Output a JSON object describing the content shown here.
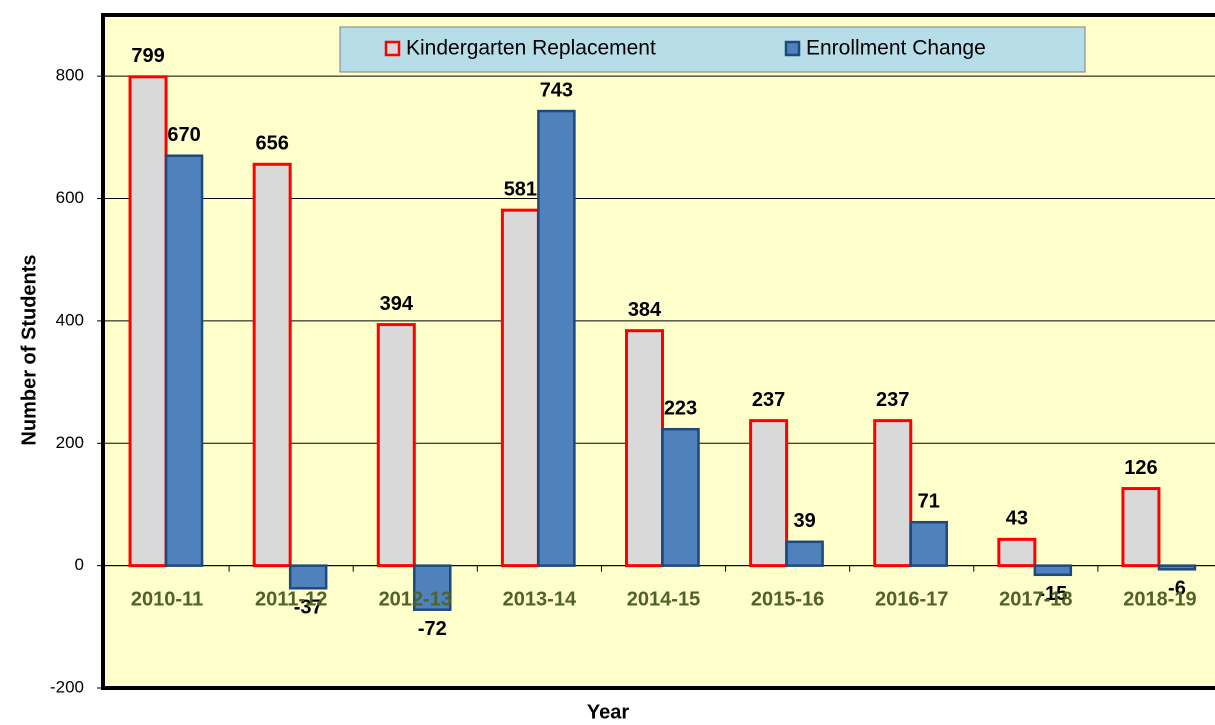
{
  "chart_data": {
    "type": "bar",
    "x_label": "Year",
    "y_label": "Number of Students",
    "categories": [
      "2010-11",
      "2011-12",
      "2012-13",
      "2013-14",
      "2014-15",
      "2015-16",
      "2016-17",
      "2017-18",
      "2018-19"
    ],
    "series": [
      {
        "name": "Kindergarten Replacement",
        "color": "#d9d9d9",
        "edge": "#ff0000",
        "values": [
          799,
          656,
          394,
          581,
          384,
          237,
          237,
          43,
          126
        ]
      },
      {
        "name": "Enrollment Change",
        "color": "#4f81bd",
        "edge": "#1f497d",
        "values": [
          670,
          -37,
          -72,
          743,
          223,
          39,
          71,
          -15,
          -6
        ]
      }
    ],
    "ylim": [
      -200,
      900
    ],
    "yticks": [
      -200,
      0,
      200,
      400,
      600,
      800
    ],
    "grid": true,
    "legend": "top"
  }
}
